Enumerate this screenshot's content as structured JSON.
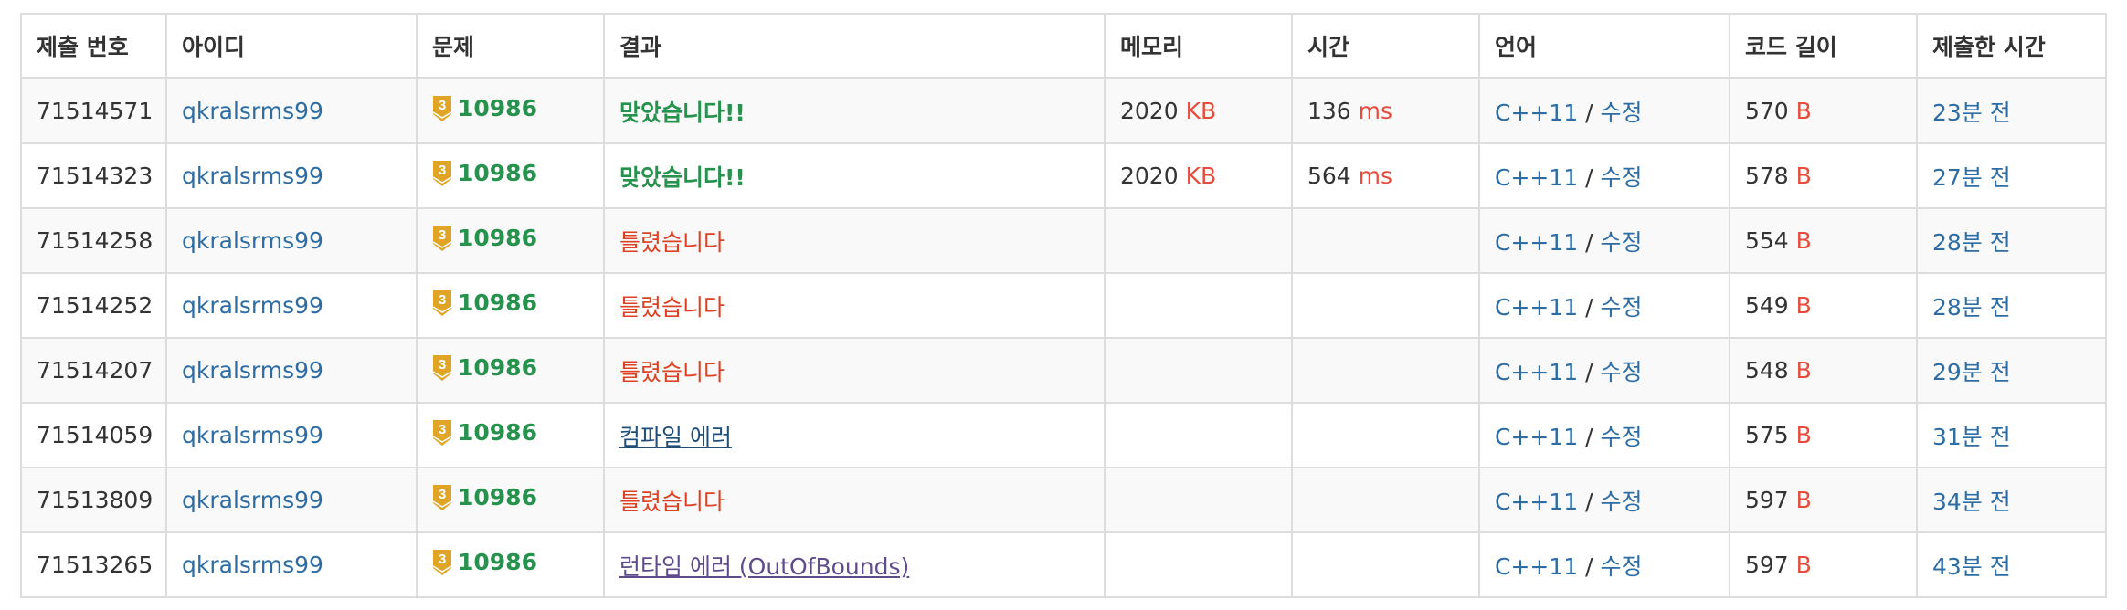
{
  "columns": [
    "제출 번호",
    "아이디",
    "문제",
    "결과",
    "메모리",
    "시간",
    "언어",
    "코드 길이",
    "제출한 시간"
  ],
  "colors": {
    "link": "#2e6da4",
    "accepted": "#27914e",
    "wrong": "#dd4124",
    "unit": "#e74c3c",
    "tier_bronze3": "#e0a526"
  },
  "rows": [
    {
      "id": "71514571",
      "user": "qkralsrms99",
      "tier_icon": "bronze-3-tier-icon",
      "tier_label": "3",
      "problem": "10986",
      "result": "맞았습니다!!",
      "result_type": "accepted",
      "memory": "2020",
      "memory_unit": "KB",
      "time": "136",
      "time_unit": "ms",
      "language": "C++11",
      "edit": "수정",
      "length": "570",
      "length_unit": "B",
      "submitted": "23분 전"
    },
    {
      "id": "71514323",
      "user": "qkralsrms99",
      "tier_icon": "bronze-3-tier-icon",
      "tier_label": "3",
      "problem": "10986",
      "result": "맞았습니다!!",
      "result_type": "accepted",
      "memory": "2020",
      "memory_unit": "KB",
      "time": "564",
      "time_unit": "ms",
      "language": "C++11",
      "edit": "수정",
      "length": "578",
      "length_unit": "B",
      "submitted": "27분 전"
    },
    {
      "id": "71514258",
      "user": "qkralsrms99",
      "tier_icon": "bronze-3-tier-icon",
      "tier_label": "3",
      "problem": "10986",
      "result": "틀렸습니다",
      "result_type": "wrong",
      "memory": "",
      "memory_unit": "",
      "time": "",
      "time_unit": "",
      "language": "C++11",
      "edit": "수정",
      "length": "554",
      "length_unit": "B",
      "submitted": "28분 전"
    },
    {
      "id": "71514252",
      "user": "qkralsrms99",
      "tier_icon": "bronze-3-tier-icon",
      "tier_label": "3",
      "problem": "10986",
      "result": "틀렸습니다",
      "result_type": "wrong",
      "memory": "",
      "memory_unit": "",
      "time": "",
      "time_unit": "",
      "language": "C++11",
      "edit": "수정",
      "length": "549",
      "length_unit": "B",
      "submitted": "28분 전"
    },
    {
      "id": "71514207",
      "user": "qkralsrms99",
      "tier_icon": "bronze-3-tier-icon",
      "tier_label": "3",
      "problem": "10986",
      "result": "틀렸습니다",
      "result_type": "wrong",
      "memory": "",
      "memory_unit": "",
      "time": "",
      "time_unit": "",
      "language": "C++11",
      "edit": "수정",
      "length": "548",
      "length_unit": "B",
      "submitted": "29분 전"
    },
    {
      "id": "71514059",
      "user": "qkralsrms99",
      "tier_icon": "bronze-3-tier-icon",
      "tier_label": "3",
      "problem": "10986",
      "result": "컴파일 에러",
      "result_type": "compile_error",
      "memory": "",
      "memory_unit": "",
      "time": "",
      "time_unit": "",
      "language": "C++11",
      "edit": "수정",
      "length": "575",
      "length_unit": "B",
      "submitted": "31분 전"
    },
    {
      "id": "71513809",
      "user": "qkralsrms99",
      "tier_icon": "bronze-3-tier-icon",
      "tier_label": "3",
      "problem": "10986",
      "result": "틀렸습니다",
      "result_type": "wrong",
      "memory": "",
      "memory_unit": "",
      "time": "",
      "time_unit": "",
      "language": "C++11",
      "edit": "수정",
      "length": "597",
      "length_unit": "B",
      "submitted": "34분 전"
    },
    {
      "id": "71513265",
      "user": "qkralsrms99",
      "tier_icon": "bronze-3-tier-icon",
      "tier_label": "3",
      "problem": "10986",
      "result": "런타임 에러 (OutOfBounds)",
      "result_type": "runtime_error",
      "memory": "",
      "memory_unit": "",
      "time": "",
      "time_unit": "",
      "language": "C++11",
      "edit": "수정",
      "length": "597",
      "length_unit": "B",
      "submitted": "43분 전"
    }
  ]
}
